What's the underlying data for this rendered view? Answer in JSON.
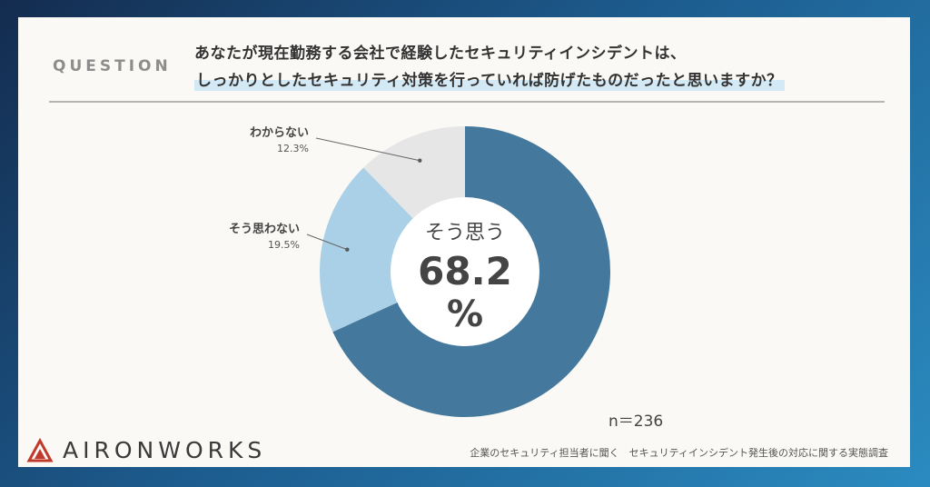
{
  "header": {
    "question_label": "QUESTION",
    "title_line1": "あなたが現在勤務する会社で経験したセキュリティインシデントは、",
    "title_line2": "しっかりとしたセキュリティ対策を行っていれば防げたものだったと思いますか？"
  },
  "chart_data": {
    "type": "pie",
    "style": "donut",
    "categories": [
      "そう思う",
      "そう思わない",
      "わからない"
    ],
    "values": [
      68.2,
      19.5,
      12.3
    ],
    "value_labels": [
      "68.2%",
      "19.5%",
      "12.3%"
    ],
    "colors": [
      "#44799d",
      "#a9d0e6",
      "#e6e6e6"
    ],
    "center_label": "そう思う",
    "center_value": "68.2",
    "center_unit": "%",
    "sample_size": "n＝236"
  },
  "footer": {
    "logo_text": "AIRONWORKS",
    "source": "企業のセキュリティ担当者に聞く　セキュリティインシデント発生後の対応に関する実態調査"
  },
  "colors": {
    "background_gradient_start": "#142c4f",
    "background_gradient_end": "#2b8bc0",
    "card": "#faf9f5",
    "logo_accent": "#c0392b"
  }
}
